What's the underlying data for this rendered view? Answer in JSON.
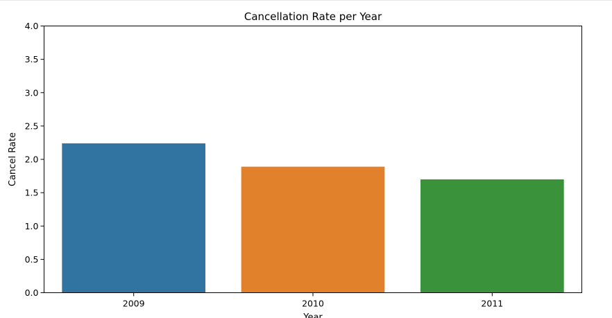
{
  "chart_data": {
    "type": "bar",
    "title": "Cancellation Rate per Year",
    "xlabel": "Year",
    "ylabel": "Cancel Rate",
    "categories": [
      "2009",
      "2010",
      "2011"
    ],
    "values": [
      2.24,
      1.89,
      1.7
    ],
    "colors": [
      "#3274a1",
      "#e1812c",
      "#3a923a"
    ],
    "ylim": [
      0,
      4
    ],
    "yticks": [
      0.0,
      0.5,
      1.0,
      1.5,
      2.0,
      2.5,
      3.0,
      3.5,
      4.0
    ],
    "ytick_labels": [
      "0.0",
      "0.5",
      "1.0",
      "1.5",
      "2.0",
      "2.5",
      "3.0",
      "3.5",
      "4.0"
    ],
    "grid": false,
    "legend": "none"
  }
}
